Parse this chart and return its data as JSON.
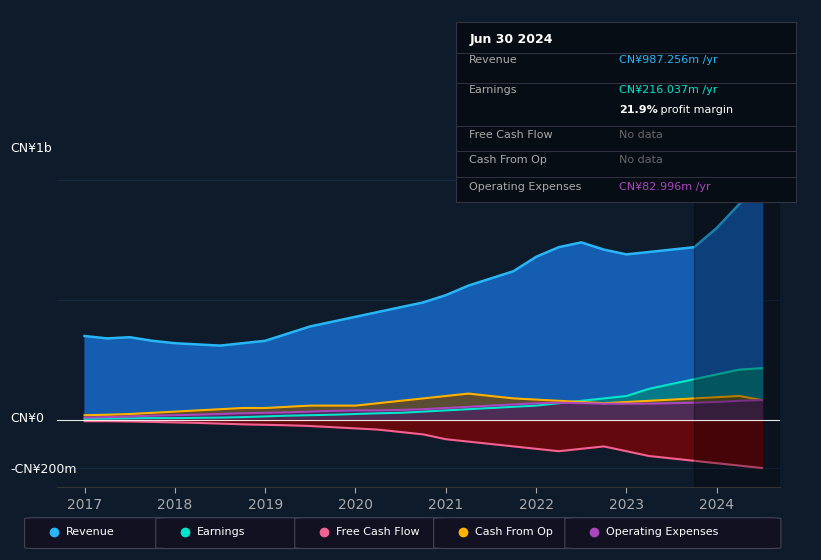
{
  "bg_color": "#0d1b2a",
  "chart_bg": "#0d1b2a",
  "grid_color": "#1e3a5f",
  "title_label": "CN¥1b",
  "bottom_label": "-CN¥200m",
  "zero_label": "CN¥0",
  "years": [
    2017.0,
    2017.25,
    2017.5,
    2017.75,
    2018.0,
    2018.25,
    2018.5,
    2018.75,
    2019.0,
    2019.25,
    2019.5,
    2019.75,
    2020.0,
    2020.25,
    2020.5,
    2020.75,
    2021.0,
    2021.25,
    2021.5,
    2021.75,
    2022.0,
    2022.25,
    2022.5,
    2022.75,
    2023.0,
    2023.25,
    2023.5,
    2023.75,
    2024.0,
    2024.25,
    2024.5
  ],
  "revenue": [
    350,
    340,
    345,
    330,
    320,
    315,
    310,
    320,
    330,
    360,
    390,
    410,
    430,
    450,
    470,
    490,
    520,
    560,
    590,
    620,
    680,
    720,
    740,
    710,
    690,
    700,
    710,
    720,
    800,
    900,
    987
  ],
  "earnings": [
    5,
    6,
    7,
    8,
    8,
    9,
    10,
    12,
    15,
    18,
    20,
    22,
    25,
    28,
    30,
    35,
    40,
    45,
    50,
    55,
    60,
    70,
    80,
    90,
    100,
    130,
    150,
    170,
    190,
    210,
    216
  ],
  "free_cash_flow": [
    -5,
    -5,
    -6,
    -8,
    -10,
    -12,
    -15,
    -18,
    -20,
    -22,
    -25,
    -30,
    -35,
    -40,
    -50,
    -60,
    -80,
    -90,
    -100,
    -110,
    -120,
    -130,
    -120,
    -110,
    -130,
    -150,
    -160,
    -170,
    -180,
    -190,
    -200
  ],
  "cash_from_op": [
    20,
    22,
    25,
    30,
    35,
    40,
    45,
    50,
    50,
    55,
    60,
    60,
    60,
    70,
    80,
    90,
    100,
    110,
    100,
    90,
    85,
    80,
    75,
    70,
    75,
    80,
    85,
    90,
    95,
    100,
    83
  ],
  "op_expenses": [
    10,
    12,
    15,
    18,
    20,
    22,
    25,
    28,
    30,
    32,
    35,
    38,
    40,
    40,
    42,
    45,
    50,
    55,
    60,
    65,
    70,
    72,
    70,
    68,
    68,
    68,
    70,
    72,
    75,
    80,
    83
  ],
  "revenue_color": "#29b6f6",
  "revenue_fill": "#1565c0",
  "earnings_color": "#00e5cc",
  "earnings_fill": "#00897b",
  "fcf_color": "#f06292",
  "fcf_fill": "#880000",
  "cashop_color": "#ffb300",
  "cashop_fill": "#7a4500",
  "opex_color": "#ab47bc",
  "opex_fill": "#4a1b6a",
  "ylim_min": -280,
  "ylim_max": 1050,
  "xlim_min": 2016.7,
  "xlim_max": 2024.7,
  "x_ticks": [
    2017,
    2018,
    2019,
    2020,
    2021,
    2022,
    2023,
    2024
  ],
  "highlight_start": 2023.75,
  "info_box": {
    "date": "Jun 30 2024",
    "revenue_label": "Revenue",
    "revenue_val": "CN¥987.256m /yr",
    "earnings_label": "Earnings",
    "earnings_val": "CN¥216.037m /yr",
    "margin": "21.9% profit margin",
    "fcf_label": "Free Cash Flow",
    "fcf_val": "No data",
    "cashop_label": "Cash From Op",
    "cashop_val": "No data",
    "opex_label": "Operating Expenses",
    "opex_val": "CN¥82.996m /yr"
  },
  "legend_items": [
    {
      "label": "Revenue",
      "color": "#29b6f6"
    },
    {
      "label": "Earnings",
      "color": "#00e5cc"
    },
    {
      "label": "Free Cash Flow",
      "color": "#f06292"
    },
    {
      "label": "Cash From Op",
      "color": "#ffb300"
    },
    {
      "label": "Operating Expenses",
      "color": "#ab47bc"
    }
  ]
}
